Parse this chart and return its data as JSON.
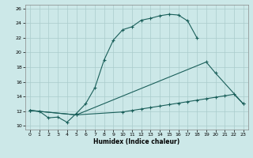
{
  "xlabel": "Humidex (Indice chaleur)",
  "bg_color": "#cce8e8",
  "grid_color": "#aacccc",
  "line_color": "#1a5f5a",
  "xlim": [
    -0.5,
    23.5
  ],
  "ylim": [
    9.5,
    26.5
  ],
  "xticks": [
    0,
    1,
    2,
    3,
    4,
    5,
    6,
    7,
    8,
    9,
    10,
    11,
    12,
    13,
    14,
    15,
    16,
    17,
    18,
    19,
    20,
    21,
    22,
    23
  ],
  "yticks": [
    10,
    12,
    14,
    16,
    18,
    20,
    22,
    24,
    26
  ],
  "curves": [
    {
      "x": [
        0,
        1,
        2,
        3,
        4,
        5,
        6,
        7,
        8,
        9,
        10,
        11,
        12,
        13,
        14,
        15,
        16,
        17,
        18
      ],
      "y": [
        12.1,
        12.0,
        11.1,
        11.2,
        10.5,
        11.7,
        13.0,
        15.2,
        19.0,
        21.7,
        23.1,
        23.5,
        24.4,
        24.65,
        25.0,
        25.2,
        25.1,
        24.3,
        22.0
      ]
    },
    {
      "x": [
        0,
        5,
        19,
        20,
        23
      ],
      "y": [
        12.1,
        11.5,
        18.7,
        17.2,
        13.0
      ]
    },
    {
      "x": [
        0,
        5,
        10,
        11,
        12,
        13,
        14,
        15,
        16,
        17,
        18,
        19,
        20,
        21,
        22,
        23
      ],
      "y": [
        12.1,
        11.5,
        11.9,
        12.1,
        12.3,
        12.5,
        12.7,
        12.9,
        13.1,
        13.3,
        13.5,
        13.7,
        13.9,
        14.1,
        14.3,
        13.0
      ]
    }
  ]
}
